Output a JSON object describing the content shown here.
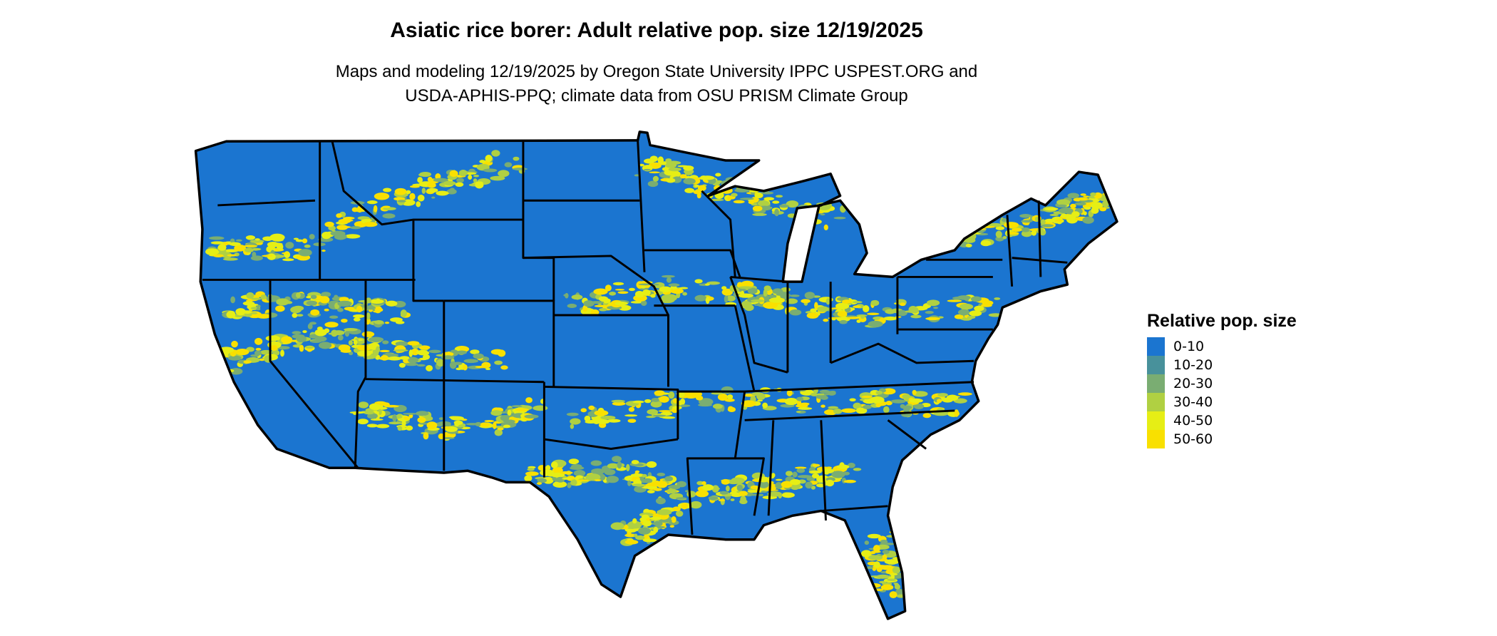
{
  "title": "Asiatic rice borer: Adult relative pop. size 12/19/2025",
  "subtitle_line1": "Maps and modeling 12/19/2025 by Oregon State University IPPC USPEST.ORG and",
  "subtitle_line2": "USDA-APHIS-PPQ; climate data from OSU PRISM Climate Group",
  "legend": {
    "title": "Relative pop. size",
    "items": [
      {
        "label": "0-10",
        "color": "#1b75d0"
      },
      {
        "label": "10-20",
        "color": "#48919b"
      },
      {
        "label": "20-30",
        "color": "#7aad72"
      },
      {
        "label": "30-40",
        "color": "#b0d042"
      },
      {
        "label": "40-50",
        "color": "#e6ee15"
      },
      {
        "label": "50-60",
        "color": "#f9e000"
      }
    ]
  },
  "map": {
    "region": "Contiguous United States",
    "base_color": "#1b75d0",
    "border_color": "#000000"
  }
}
